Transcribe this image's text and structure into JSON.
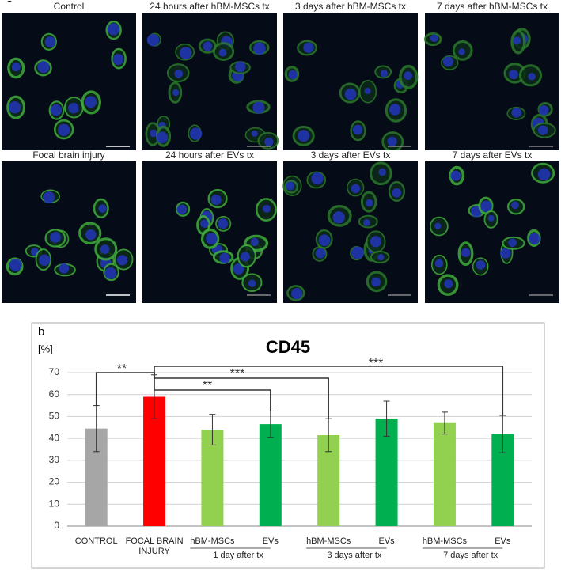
{
  "panel_a": {
    "label": "a",
    "images": [
      {
        "label": "Control"
      },
      {
        "label": "24 hours after hBM-MSCs tx"
      },
      {
        "label": "3 days after hBM-MSCs tx"
      },
      {
        "label": "7 days after hBM-MSCs tx"
      },
      {
        "label": "Focal brain injury"
      },
      {
        "label": "24 hours after EVs tx"
      },
      {
        "label": "3 days after EVs tx"
      },
      {
        "label": "7 days after EVs tx"
      }
    ]
  },
  "chart_data": {
    "type": "bar",
    "panel_label": "b",
    "title": "CD45",
    "y_label": "[%]",
    "categories": [
      "CONTROL",
      "FOCAL BRAIN INJURY",
      "hBM-MSCs",
      "EVs",
      "hBM-MSCs",
      "EVs",
      "hBM-MSCs",
      "EVs"
    ],
    "group_labels": [
      "1 day after tx",
      "3 days after tx",
      "7 days after tx"
    ],
    "values": [
      44.5,
      59,
      44,
      46.5,
      41.5,
      49,
      47,
      42
    ],
    "errors": [
      10.5,
      10,
      7,
      6,
      7.5,
      8,
      5,
      8.5
    ],
    "colors": [
      "#a6a6a6",
      "#ff0000",
      "#92d050",
      "#00b050",
      "#92d050",
      "#00b050",
      "#92d050",
      "#00b050"
    ],
    "annotations": [
      "**",
      "***",
      "**",
      "***"
    ],
    "ylim": [
      0,
      70
    ],
    "yticks": [
      0,
      10,
      20,
      30,
      40,
      50,
      60,
      70
    ],
    "grid": true
  }
}
